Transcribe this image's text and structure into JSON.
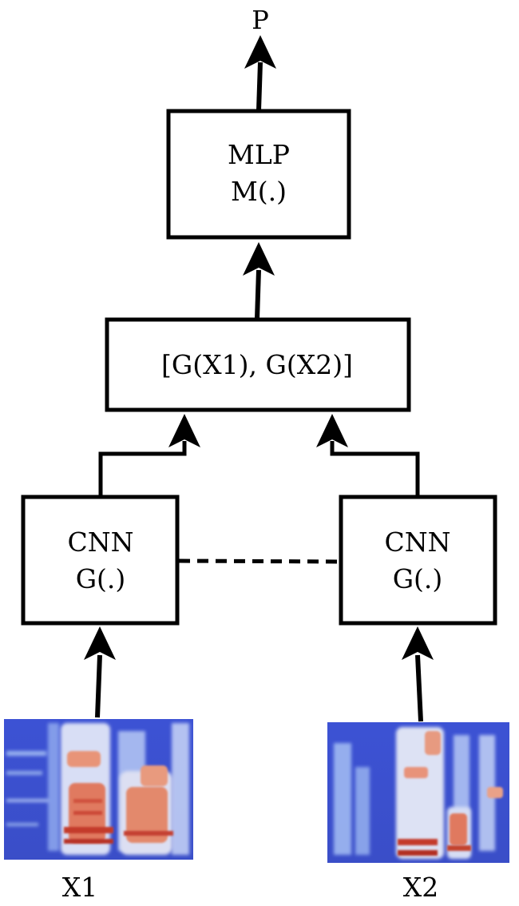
{
  "output": {
    "label": "P"
  },
  "mlp": {
    "line1": "MLP",
    "line2": "M(.)"
  },
  "concat": {
    "label": "[G(X1), G(X2)]"
  },
  "cnn_left": {
    "line1": "CNN",
    "line2": "G(.)"
  },
  "cnn_right": {
    "line1": "CNN",
    "line2": "G(.)"
  },
  "inputs": {
    "x1": "X1",
    "x2": "X2"
  },
  "colors": {
    "stroke": "#000000",
    "spec_bg": "#3b4fcf",
    "spec_hot": "#c8412a"
  }
}
